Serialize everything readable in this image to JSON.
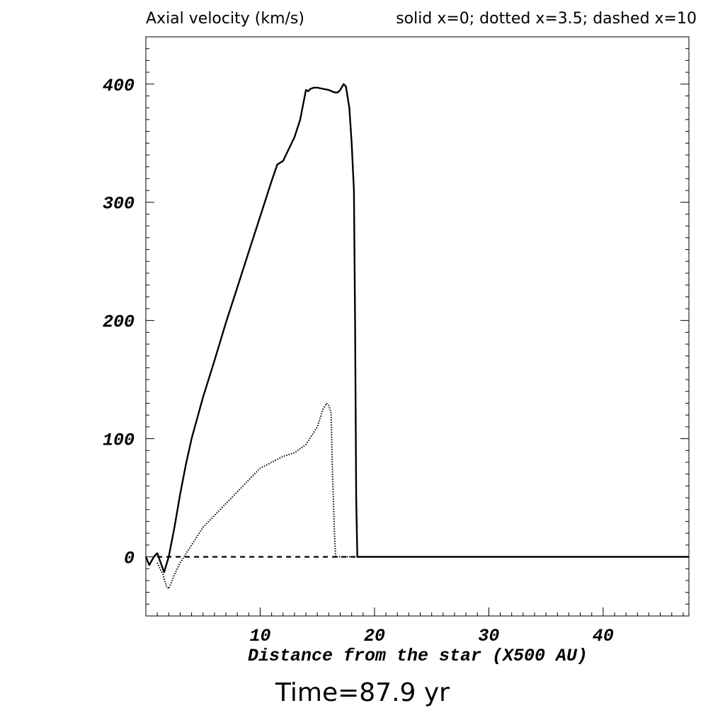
{
  "chart_data": {
    "type": "line",
    "title": "Axial velocity (km/s)",
    "legend_text": "solid x=0; dotted x=3.5; dashed x=10",
    "xlabel": "Distance from the star (X500 AU)",
    "footer": "Time=87.9 yr",
    "xlim": [
      0,
      47.5
    ],
    "ylim": [
      -50,
      440
    ],
    "xticks": [
      10,
      20,
      30,
      40
    ],
    "yticks": [
      0,
      100,
      200,
      300,
      400
    ],
    "grid": false,
    "series": [
      {
        "style": "solid",
        "x": [
          0,
          0.3,
          0.7,
          1.0,
          1.3,
          1.6,
          2.0,
          2.5,
          3.0,
          3.5,
          4.0,
          5.0,
          6.0,
          7.0,
          8.0,
          9.0,
          10.0,
          11.0,
          11.5,
          12.0,
          12.5,
          13.0,
          13.5,
          14.0,
          14.2,
          14.4,
          14.7,
          15.0,
          15.5,
          16.0,
          16.5,
          16.8,
          17.0,
          17.3,
          17.5,
          17.8,
          18.0,
          18.2,
          18.3,
          18.4,
          18.5,
          19.0,
          47.5
        ],
        "y": [
          0,
          -7,
          0,
          3,
          -5,
          -13,
          0,
          25,
          53,
          78,
          100,
          135,
          166,
          198,
          228,
          258,
          288,
          318,
          332,
          335,
          345,
          355,
          370,
          395,
          394,
          396,
          397,
          397,
          396,
          395,
          393,
          393,
          395,
          400,
          398,
          380,
          350,
          310,
          200,
          50,
          0,
          0,
          0
        ]
      },
      {
        "style": "dotted",
        "x": [
          1.0,
          1.5,
          1.8,
          2.0,
          2.5,
          3.0,
          4.0,
          5.0,
          6.0,
          7.0,
          8.0,
          9.0,
          10.0,
          11.0,
          12.0,
          13.0,
          14.0,
          15.0,
          15.5,
          15.8,
          16.0,
          16.2,
          16.3,
          16.5,
          16.6,
          16.7,
          17.0,
          18.5
        ],
        "y": [
          -5,
          -15,
          -25,
          -27,
          -15,
          -5,
          10,
          25,
          35,
          45,
          55,
          65,
          75,
          80,
          85,
          88,
          95,
          110,
          125,
          130,
          128,
          122,
          80,
          20,
          0,
          0,
          0,
          0
        ]
      },
      {
        "style": "dashed",
        "x": [
          1.0,
          2.0,
          4.0,
          8.0,
          12.0,
          16.0,
          18.5
        ],
        "y": [
          0,
          0,
          0,
          0,
          0,
          0,
          0
        ]
      }
    ]
  }
}
